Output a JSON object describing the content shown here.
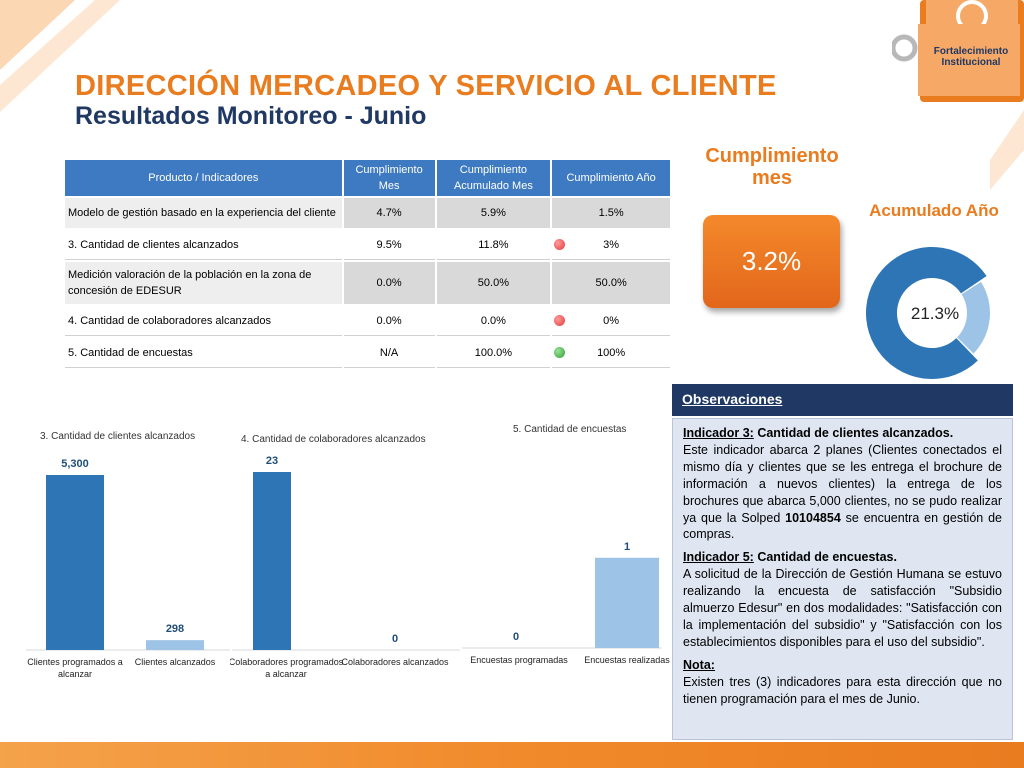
{
  "header": {
    "title": "DIRECCIÓN MERCADEO Y SERVICIO AL CLIENTE",
    "subtitle": "Resultados Monitoreo - Junio",
    "logo_text": [
      "Fortalecimiento",
      "Institucional"
    ]
  },
  "table": {
    "headers": [
      "Producto / Indicadores",
      "Cumplimiento Mes",
      "Cumplimiento Acumulado Mes",
      "Cumplimiento  Año"
    ],
    "rows": [
      {
        "name": "Modelo de gestión basado en la experiencia del cliente",
        "mes": "4.7%",
        "acumulado": "5.9%",
        "anio": "1.5%",
        "status": ""
      },
      {
        "name": "3. Cantidad de clientes alcanzados",
        "mes": "9.5%",
        "acumulado": "11.8%",
        "anio": "3%",
        "status": "red"
      },
      {
        "name": "Medición valoración de la población en la zona de concesión de EDESUR",
        "mes": "0.0%",
        "acumulado": "50.0%",
        "anio": "50.0%",
        "status": ""
      },
      {
        "name": "4. Cantidad de colaboradores alcanzados",
        "mes": "0.0%",
        "acumulado": "0.0%",
        "anio": "0%",
        "status": "red"
      },
      {
        "name": "5. Cantidad de encuestas",
        "mes": "N/A",
        "acumulado": "100.0%",
        "anio": "100%",
        "status": "green"
      }
    ]
  },
  "kpi": {
    "label": "Cumplimiento mes",
    "value": "3.2%",
    "acc_label": "Acumulado Año",
    "acc_value": "21.3%",
    "acc_fraction": 0.213
  },
  "observations": {
    "title": "Observaciones",
    "ind3_label": "Indicador 3:",
    "ind3_title": "Cantidad de clientes alcanzados.",
    "ind3_text_a": "Este indicador abarca 2 planes (Clientes conectados el mismo día y clientes que se les entrega el brochure de información a nuevos clientes) la entrega de los brochures que abarca 5,000 clientes, no se pudo realizar ya que la Solped ",
    "ind3_solped": "10104854",
    "ind3_text_b": " se encuentra en gestión de compras.",
    "ind5_label": "Indicador 5:",
    "ind5_title": "Cantidad de encuestas.",
    "ind5_text": "A solicitud de la Dirección de Gestión Humana se estuvo realizando la encuesta de satisfacción \"Subsidio almuerzo Edesur\" en dos modalidades: \"Satisfacción con la implementación del subsidio\" y \"Satisfacción con los establecimientos disponibles para el uso del subsidio\".",
    "note_label": "Nota:",
    "note_text": "Existen tres (3) indicadores para esta dirección que no tienen programación para el mes de Junio."
  },
  "colors": {
    "orange": "#e97c1f",
    "navy": "#1f3864",
    "bar_dark": "#2e75b6",
    "bar_light": "#9dc3e6",
    "label_blue": "#1f4e79"
  },
  "chart_data": [
    {
      "type": "bar",
      "title": "3. Cantidad de clientes alcanzados",
      "categories": [
        "Clientes programados a alcanzar",
        "Clientes alcanzados"
      ],
      "values": [
        5300,
        298
      ],
      "value_labels": [
        "5,300",
        "298"
      ],
      "ylim": [
        0,
        5300
      ]
    },
    {
      "type": "bar",
      "title": "4. Cantidad de colaboradores alcanzados",
      "categories": [
        "Colaboradores programados a alcanzar",
        "Colaboradores alcanzados"
      ],
      "values": [
        23,
        0
      ],
      "value_labels": [
        "23",
        "0"
      ],
      "ylim": [
        0,
        23
      ]
    },
    {
      "type": "bar",
      "title": "5. Cantidad de encuestas",
      "categories": [
        "Encuestas programadas",
        "Encuestas realizadas"
      ],
      "values": [
        0,
        1
      ],
      "value_labels": [
        "0",
        "1"
      ],
      "ylim": [
        0,
        1.33
      ]
    },
    {
      "type": "pie",
      "title": "Acumulado Año",
      "values": [
        78.7,
        21.3
      ],
      "center_label": "21.3%"
    }
  ]
}
